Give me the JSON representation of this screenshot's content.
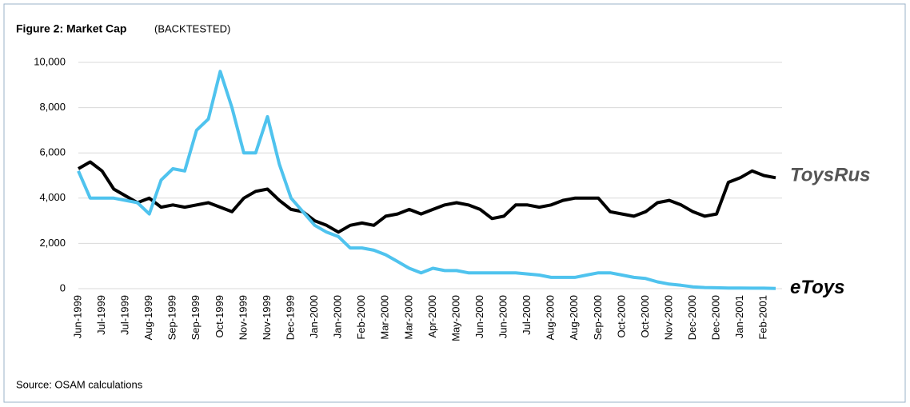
{
  "chart_data": {
    "type": "line",
    "title": "Figure 2: Market Cap",
    "subtitle": "(BACKTESTED)",
    "source": "Source: OSAM calculations",
    "categories": [
      "Jun-1999",
      null,
      "Jul-1999",
      null,
      "Jul-1999",
      null,
      "Aug-1999",
      null,
      "Sep-1999",
      null,
      "Sep-1999",
      null,
      "Oct-1999",
      null,
      "Nov-1999",
      null,
      "Nov-1999",
      null,
      "Dec-1999",
      null,
      "Jan-2000",
      null,
      "Jan-2000",
      null,
      "Feb-2000",
      null,
      "Mar-2000",
      null,
      "Mar-2000",
      null,
      "Apr-2000",
      null,
      "May-2000",
      null,
      "Jun-2000",
      null,
      "Jun-2000",
      null,
      "Jul-2000",
      null,
      "Aug-2000",
      null,
      "Aug-2000",
      null,
      "Sep-2000",
      null,
      "Oct-2000",
      null,
      "Oct-2000",
      null,
      "Nov-2000",
      null,
      "Dec-2000",
      null,
      "Dec-2000",
      null,
      "Jan-2001",
      null,
      "Feb-2001",
      null
    ],
    "series": [
      {
        "name": "ToysRus",
        "color": "#000000",
        "values": [
          5300,
          5600,
          5200,
          4400,
          4100,
          3800,
          4000,
          3600,
          3700,
          3600,
          3700,
          3800,
          3600,
          3400,
          4000,
          4300,
          4400,
          3900,
          3500,
          3400,
          3000,
          2800,
          2500,
          2800,
          2900,
          2800,
          3200,
          3300,
          3500,
          3300,
          3500,
          3700,
          3800,
          3700,
          3500,
          3100,
          3200,
          3700,
          3700,
          3600,
          3700,
          3900,
          4000,
          4000,
          4000,
          3400,
          3300,
          3200,
          3400,
          3800,
          3900,
          3700,
          3400,
          3200,
          3300,
          4700,
          4900,
          5200,
          5000,
          4900
        ]
      },
      {
        "name": "eToys",
        "color": "#4fc3ee",
        "values": [
          5200,
          4000,
          4000,
          4000,
          3900,
          3800,
          3300,
          4800,
          5300,
          5200,
          7000,
          7500,
          9600,
          8000,
          6000,
          6000,
          7600,
          5500,
          4000,
          3400,
          2800,
          2500,
          2300,
          1800,
          1800,
          1700,
          1500,
          1200,
          900,
          700,
          900,
          800,
          800,
          700,
          700,
          700,
          700,
          700,
          650,
          600,
          500,
          500,
          500,
          600,
          700,
          700,
          600,
          500,
          450,
          300,
          200,
          150,
          80,
          50,
          40,
          30,
          30,
          20,
          20,
          10
        ]
      }
    ],
    "ylim": [
      0,
      10000
    ],
    "yticks": [
      0,
      {
        "value": 2000,
        "label": "2,000"
      },
      {
        "value": 4000,
        "label": "4,000"
      },
      {
        "value": 6000,
        "label": "6,000"
      },
      {
        "value": 8000,
        "label": "8,000"
      },
      {
        "value": 10000,
        "label": "10,000"
      }
    ],
    "grid": true
  }
}
